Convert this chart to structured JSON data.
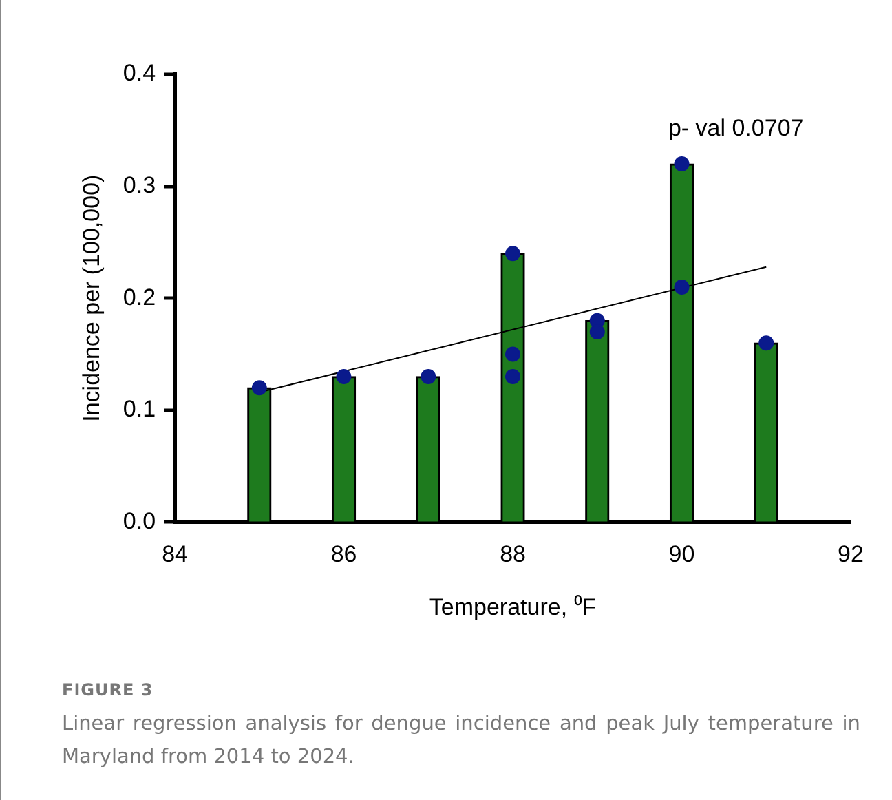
{
  "chart_data": {
    "type": "bar",
    "xlabel": "Temperature, ⁰F",
    "ylabel": "Incidence per (100,000)",
    "series": [
      {
        "color": "#1e7b1e",
        "x": [
          85,
          86,
          87,
          88,
          89,
          90,
          91
        ],
        "values": [
          0.12,
          0.13,
          0.13,
          0.24,
          0.18,
          0.32,
          0.16
        ]
      },
      {
        "type": "scatter",
        "color": "#0a1a8c",
        "marker": "circle",
        "x": [
          85,
          86,
          87,
          88,
          88,
          88,
          89,
          89,
          90,
          90,
          91
        ],
        "values": [
          0.12,
          0.13,
          0.13,
          0.24,
          0.15,
          0.13,
          0.18,
          0.17,
          0.32,
          0.21,
          0.16
        ]
      },
      {
        "type": "line",
        "color": "#000000",
        "line_style": "solid",
        "marker": "none",
        "x": [
          85,
          91
        ],
        "values": [
          0.116,
          0.228
        ]
      }
    ],
    "xlim": [
      84,
      92
    ],
    "xticks": [
      84,
      86,
      88,
      90,
      92
    ],
    "ylim": [
      0,
      0.4
    ],
    "yticks": [
      {
        "value": 0,
        "label": "0.0"
      },
      {
        "value": 0.1,
        "label": "0.1"
      },
      {
        "value": 0.2,
        "label": "0.2"
      },
      {
        "value": 0.3,
        "label": "0.3"
      },
      {
        "value": 0.4,
        "label": "0.4"
      }
    ],
    "grid": false,
    "legend": false,
    "annotations": [
      "p- val 0.0707",
      "FIGURE 3",
      "Linear regression analysis for dengue incidence and peak July temperature in Maryland from 2014 to 2024."
    ]
  }
}
